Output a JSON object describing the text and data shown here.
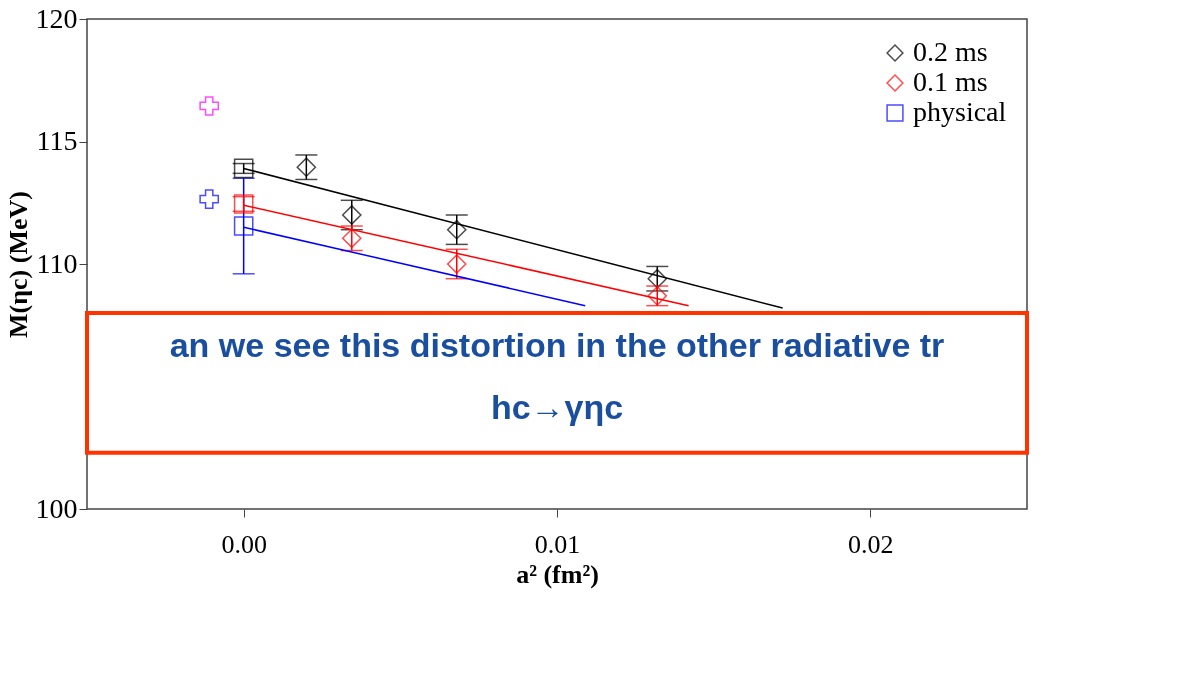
{
  "chart_data": {
    "type": "scatter",
    "xlabel": "a² (fm²)",
    "ylabel": "M(ηc) (MeV)",
    "xlim": [
      -0.005,
      0.025
    ],
    "ylim": [
      100,
      120
    ],
    "xticks": [
      {
        "value": 0,
        "label": "0.00"
      },
      {
        "value": 0.01,
        "label": "0.01"
      },
      {
        "value": 0.02,
        "label": "0.02"
      }
    ],
    "yticks": [
      100,
      110,
      115,
      120
    ],
    "grid": false,
    "legend": "top right",
    "bands": [
      {
        "axis": "y",
        "from": 102.3,
        "to": 108.0,
        "color": "#ffffff"
      }
    ],
    "annotations": [
      "an we see this distortion in the other radiative tr",
      "hc→γηc"
    ],
    "series": [
      {
        "name": "0.2 ms",
        "color": "#000000",
        "marker": "diamond",
        "x": [
          0.002,
          0.00345,
          0.0068,
          0.0132
        ],
        "values": [
          113.95,
          112.0,
          111.4,
          109.4
        ],
        "errors": [
          0.5,
          0.6,
          0.6,
          0.5
        ]
      },
      {
        "name": "0.1 ms",
        "color": "#ff0000",
        "marker": "diamond",
        "x": [
          0.00345,
          0.0068,
          0.0132
        ],
        "values": [
          111.05,
          110.0,
          108.7
        ],
        "errors": [
          0.5,
          0.6,
          0.4
        ]
      },
      {
        "name": "physical",
        "color": "#0000ff",
        "marker": "square",
        "x": [
          0
        ],
        "values": [
          111.55
        ],
        "errors": [
          [
            109.6,
            113.5
          ]
        ]
      },
      {
        "color": "#000000",
        "marker": "square",
        "x": [
          0
        ],
        "values": [
          113.9
        ],
        "errors": [
          0.2
        ]
      },
      {
        "color": "#ff0000",
        "marker": "square",
        "x": [
          0
        ],
        "values": [
          112.45
        ],
        "errors": [
          0.3
        ]
      },
      {
        "color": "#ff00ff",
        "marker": "cross",
        "x": [
          -0.0011
        ],
        "values": [
          116.45
        ]
      },
      {
        "color": "#0000ff",
        "marker": "cross",
        "x": [
          -0.0011
        ],
        "values": [
          112.65
        ]
      },
      {
        "color": "#000000",
        "type": "line",
        "x": [
          0,
          0.0172
        ],
        "values": [
          113.9,
          108.2
        ]
      },
      {
        "color": "#ff0000",
        "type": "line",
        "x": [
          0,
          0.0142
        ],
        "values": [
          112.4,
          108.3
        ]
      },
      {
        "color": "#0000ff",
        "type": "line",
        "x": [
          0,
          0.0109
        ],
        "values": [
          111.5,
          108.3
        ]
      }
    ]
  }
}
